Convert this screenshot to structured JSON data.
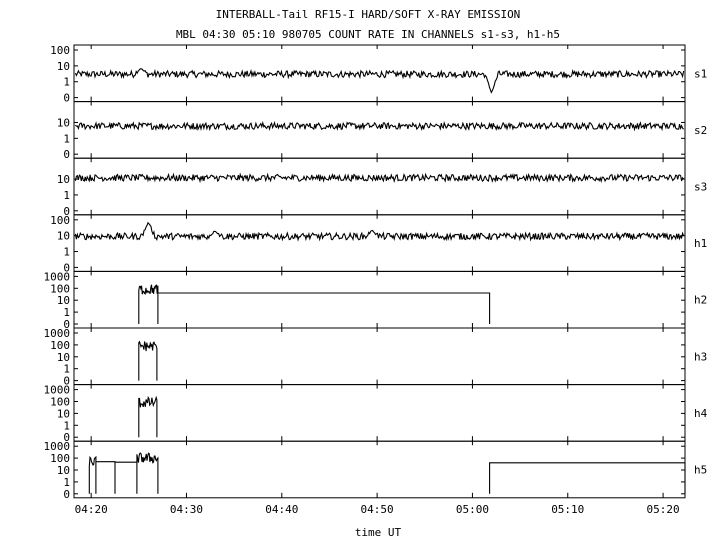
{
  "title": "INTERBALL-Tail RF15-I HARD/SOFT X-RAY EMISSION",
  "subtitle": "MBL 04:30 05:10 980705  COUNT RATE IN CHANNELS s1-s3, h1-h5",
  "chart_data": {
    "type": "line",
    "title": "INTERBALL-Tail RF15-I HARD/SOFT X-RAY EMISSION",
    "subtitle": "MBL 04:30 05:10 980705  COUNT RATE IN CHANNELS s1-s3, h1-h5",
    "xlabel": "time UT",
    "x_unit": "minutes after 04:00 UT",
    "xlim": [
      18.2,
      82.3
    ],
    "x_ticks": [
      {
        "value": 20,
        "label": "04:20"
      },
      {
        "value": 30,
        "label": "04:30"
      },
      {
        "value": 40,
        "label": "04:40"
      },
      {
        "value": 50,
        "label": "04:50"
      },
      {
        "value": 60,
        "label": "05:00"
      },
      {
        "value": 70,
        "label": "05:10"
      },
      {
        "value": 80,
        "label": "05:20"
      }
    ],
    "y_scale": "log (count rate, 0 at bottom)",
    "panels": [
      {
        "name": "s1",
        "y_ticks": [
          "100",
          "10",
          "1",
          "0"
        ],
        "ylim": [
          0,
          100
        ],
        "typical_level": 3,
        "events": [
          {
            "x": 62.0,
            "y": 0.2,
            "note": "dropout"
          },
          {
            "x": 25.2,
            "y": 7
          }
        ]
      },
      {
        "name": "s2",
        "y_ticks": [
          "10",
          "1",
          "0"
        ],
        "ylim": [
          0,
          100
        ],
        "typical_level": 6
      },
      {
        "name": "s3",
        "y_ticks": [
          "10",
          "1",
          "0"
        ],
        "ylim": [
          0,
          100
        ],
        "typical_level": 12
      },
      {
        "name": "h1",
        "y_ticks": [
          "100",
          "10",
          "1",
          "0"
        ],
        "ylim": [
          0,
          100
        ],
        "typical_level": 9,
        "events": [
          {
            "x": 26.0,
            "y": 70
          },
          {
            "x": 33.0,
            "y": 20
          },
          {
            "x": 49.5,
            "y": 22
          }
        ]
      },
      {
        "name": "h2",
        "y_ticks": [
          "1000",
          "100",
          "10",
          "1",
          "0"
        ],
        "ylim": [
          0,
          1000
        ],
        "segments": [
          {
            "x_start": 25.0,
            "x_end": 27.0,
            "level": 80,
            "burst": true
          },
          {
            "x_start": 27.0,
            "x_end": 61.8,
            "level": 40,
            "burst": false
          }
        ]
      },
      {
        "name": "h3",
        "y_ticks": [
          "1000",
          "100",
          "10",
          "1",
          "0"
        ],
        "ylim": [
          0,
          1000
        ],
        "segments": [
          {
            "x_start": 25.0,
            "x_end": 26.9,
            "level": 80,
            "burst": true
          }
        ]
      },
      {
        "name": "h4",
        "y_ticks": [
          "1000",
          "100",
          "10",
          "1",
          "0"
        ],
        "ylim": [
          0,
          1000
        ],
        "segments": [
          {
            "x_start": 25.0,
            "x_end": 26.9,
            "level": 80,
            "burst": true
          }
        ]
      },
      {
        "name": "h5",
        "y_ticks": [
          "1000",
          "100",
          "10",
          "1",
          "0"
        ],
        "ylim": [
          0,
          1000
        ],
        "segments": [
          {
            "x_start": 19.8,
            "x_end": 20.5,
            "level": 50,
            "burst": true
          },
          {
            "x_start": 20.5,
            "x_end": 22.5,
            "level": 50,
            "burst": false
          },
          {
            "x_start": 22.5,
            "x_end": 24.8,
            "level": 45,
            "burst": false
          },
          {
            "x_start": 24.8,
            "x_end": 27.0,
            "level": 100,
            "burst": true
          },
          {
            "x_start": 61.8,
            "x_end": 82.3,
            "level": 40,
            "burst": false
          }
        ]
      }
    ]
  }
}
